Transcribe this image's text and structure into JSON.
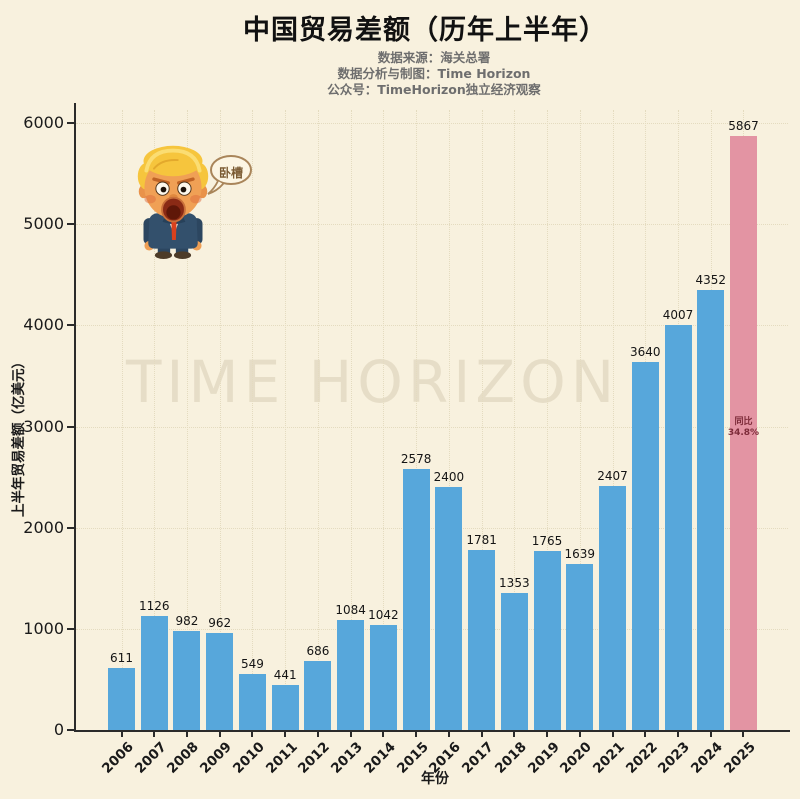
{
  "header": {
    "title": "中国贸易差额（历年上半年）",
    "subtitle_source": "数据来源：海关总署",
    "subtitle_analysis": "数据分析与制图：Time Horizon",
    "subtitle_account": "公众号：TimeHorizon独立经济观察"
  },
  "chart_data": {
    "type": "bar",
    "title": "中国贸易差额（历年上半年）",
    "categories": [
      "2006",
      "2007",
      "2008",
      "2009",
      "2010",
      "2011",
      "2012",
      "2013",
      "2014",
      "2015",
      "2016",
      "2017",
      "2018",
      "2019",
      "2020",
      "2021",
      "2022",
      "2023",
      "2024",
      "2025"
    ],
    "values": [
      611,
      1126,
      982,
      962,
      549,
      441,
      686,
      1084,
      1042,
      2578,
      2400,
      1781,
      1353,
      1765,
      1639,
      2407,
      3640,
      4007,
      4352,
      5867
    ],
    "xlabel": "年份",
    "ylabel": "上半年贸易差额（亿美元）",
    "ylim": [
      0,
      6000
    ],
    "ytick_step": 1000,
    "grid": true,
    "legend": "none",
    "highlight_index": 19,
    "highlight_note_line1": "同比",
    "highlight_note_line2": "34.8%"
  },
  "annotations": {
    "watermark": "TIME HORIZON",
    "speech_bubble": "卧槽"
  },
  "colors": {
    "background": "#f8f1de",
    "bar": "#57a7db",
    "highlight_bar": "#e394a3",
    "axis": "#2b2b2b",
    "grid": "#e4dbbf",
    "note_text": "#7e2c3a",
    "subtitle_text": "#6e6e6e"
  }
}
